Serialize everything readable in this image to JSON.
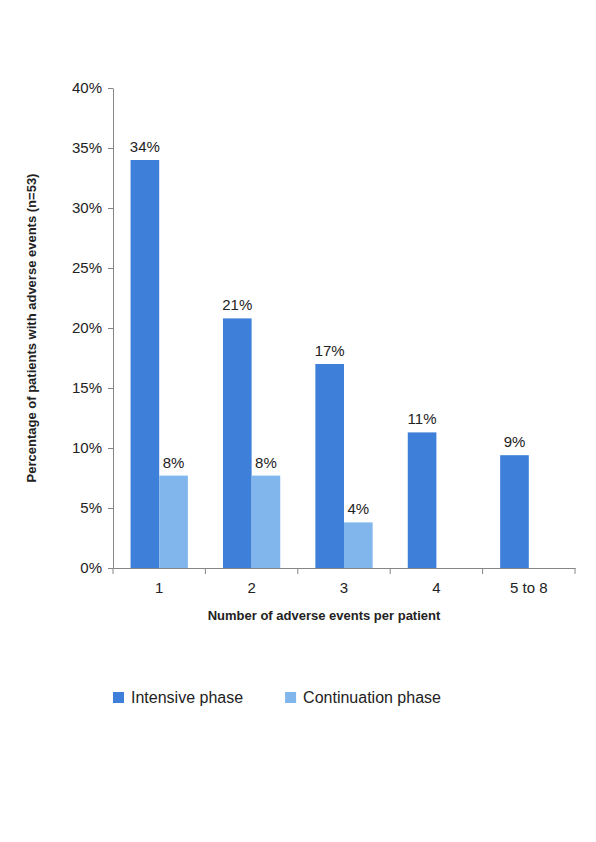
{
  "chart_data": {
    "type": "bar",
    "y_label": "Percentage of patients with adverse events (n=53)",
    "x_label": "Number of adverse events per patient",
    "categories": [
      "1",
      "2",
      "3",
      "4",
      "5 to 8"
    ],
    "series": [
      {
        "name": "Intensive phase",
        "color": "#3d7fd9",
        "values": [
          34,
          20.8,
          17,
          11.3,
          9.4
        ],
        "value_labels": [
          "34%",
          "21%",
          "17%",
          "11%",
          "9%"
        ]
      },
      {
        "name": "Continuation phase",
        "color": "#80b6ec",
        "values": [
          7.7,
          7.7,
          3.8,
          null,
          null
        ],
        "value_labels": [
          "8%",
          "8%",
          "4%",
          null,
          null
        ]
      }
    ],
    "ylim": [
      0,
      40
    ],
    "yticks": [
      {
        "value": 0,
        "label": "0%"
      },
      {
        "value": 5,
        "label": "5%"
      },
      {
        "value": 10,
        "label": "10%"
      },
      {
        "value": 15,
        "label": "15%"
      },
      {
        "value": 20,
        "label": "20%"
      },
      {
        "value": 25,
        "label": "25%"
      },
      {
        "value": 30,
        "label": "30%"
      },
      {
        "value": 35,
        "label": "35%"
      },
      {
        "value": 40,
        "label": "40%"
      }
    ],
    "grid": false,
    "legend": "bottom",
    "data_labels": true
  }
}
